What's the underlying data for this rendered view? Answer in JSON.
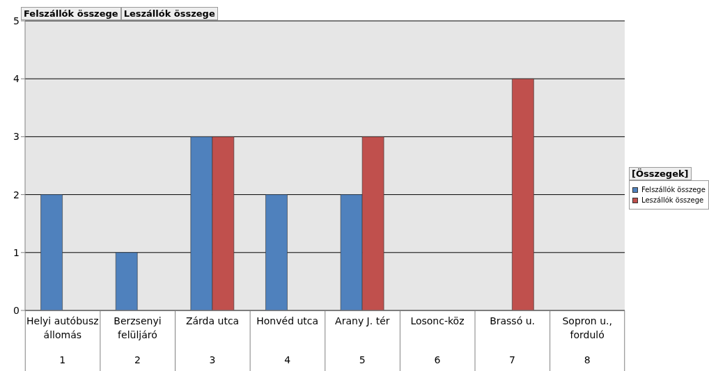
{
  "chart_data": {
    "type": "bar",
    "categories": [
      "Helyi autóbusz állomás\n1",
      "Berzsenyi felüljáró\n2",
      "Zárda utca\n3",
      "Honvéd utca\n4",
      "Arany J. tér\n5",
      "Losonc-köz\n6",
      "Brassó u.\n7",
      "Sopron u., forduló\n8"
    ],
    "series": [
      {
        "name": "Felszállók összege",
        "color": "#4f81bd",
        "values": [
          2,
          1,
          3,
          2,
          2,
          null,
          null,
          null
        ]
      },
      {
        "name": "Leszállók összege",
        "color": "#c0504d",
        "values": [
          null,
          null,
          3,
          null,
          3,
          null,
          4,
          null
        ]
      }
    ],
    "ylim": [
      0,
      5
    ],
    "yticks": [
      0,
      1,
      2,
      3,
      4,
      5
    ],
    "grid": "y",
    "legend": "right",
    "legend_title": "[Összegek]",
    "annotations": [
      "Felszállók összege",
      "Leszállók összege"
    ]
  }
}
